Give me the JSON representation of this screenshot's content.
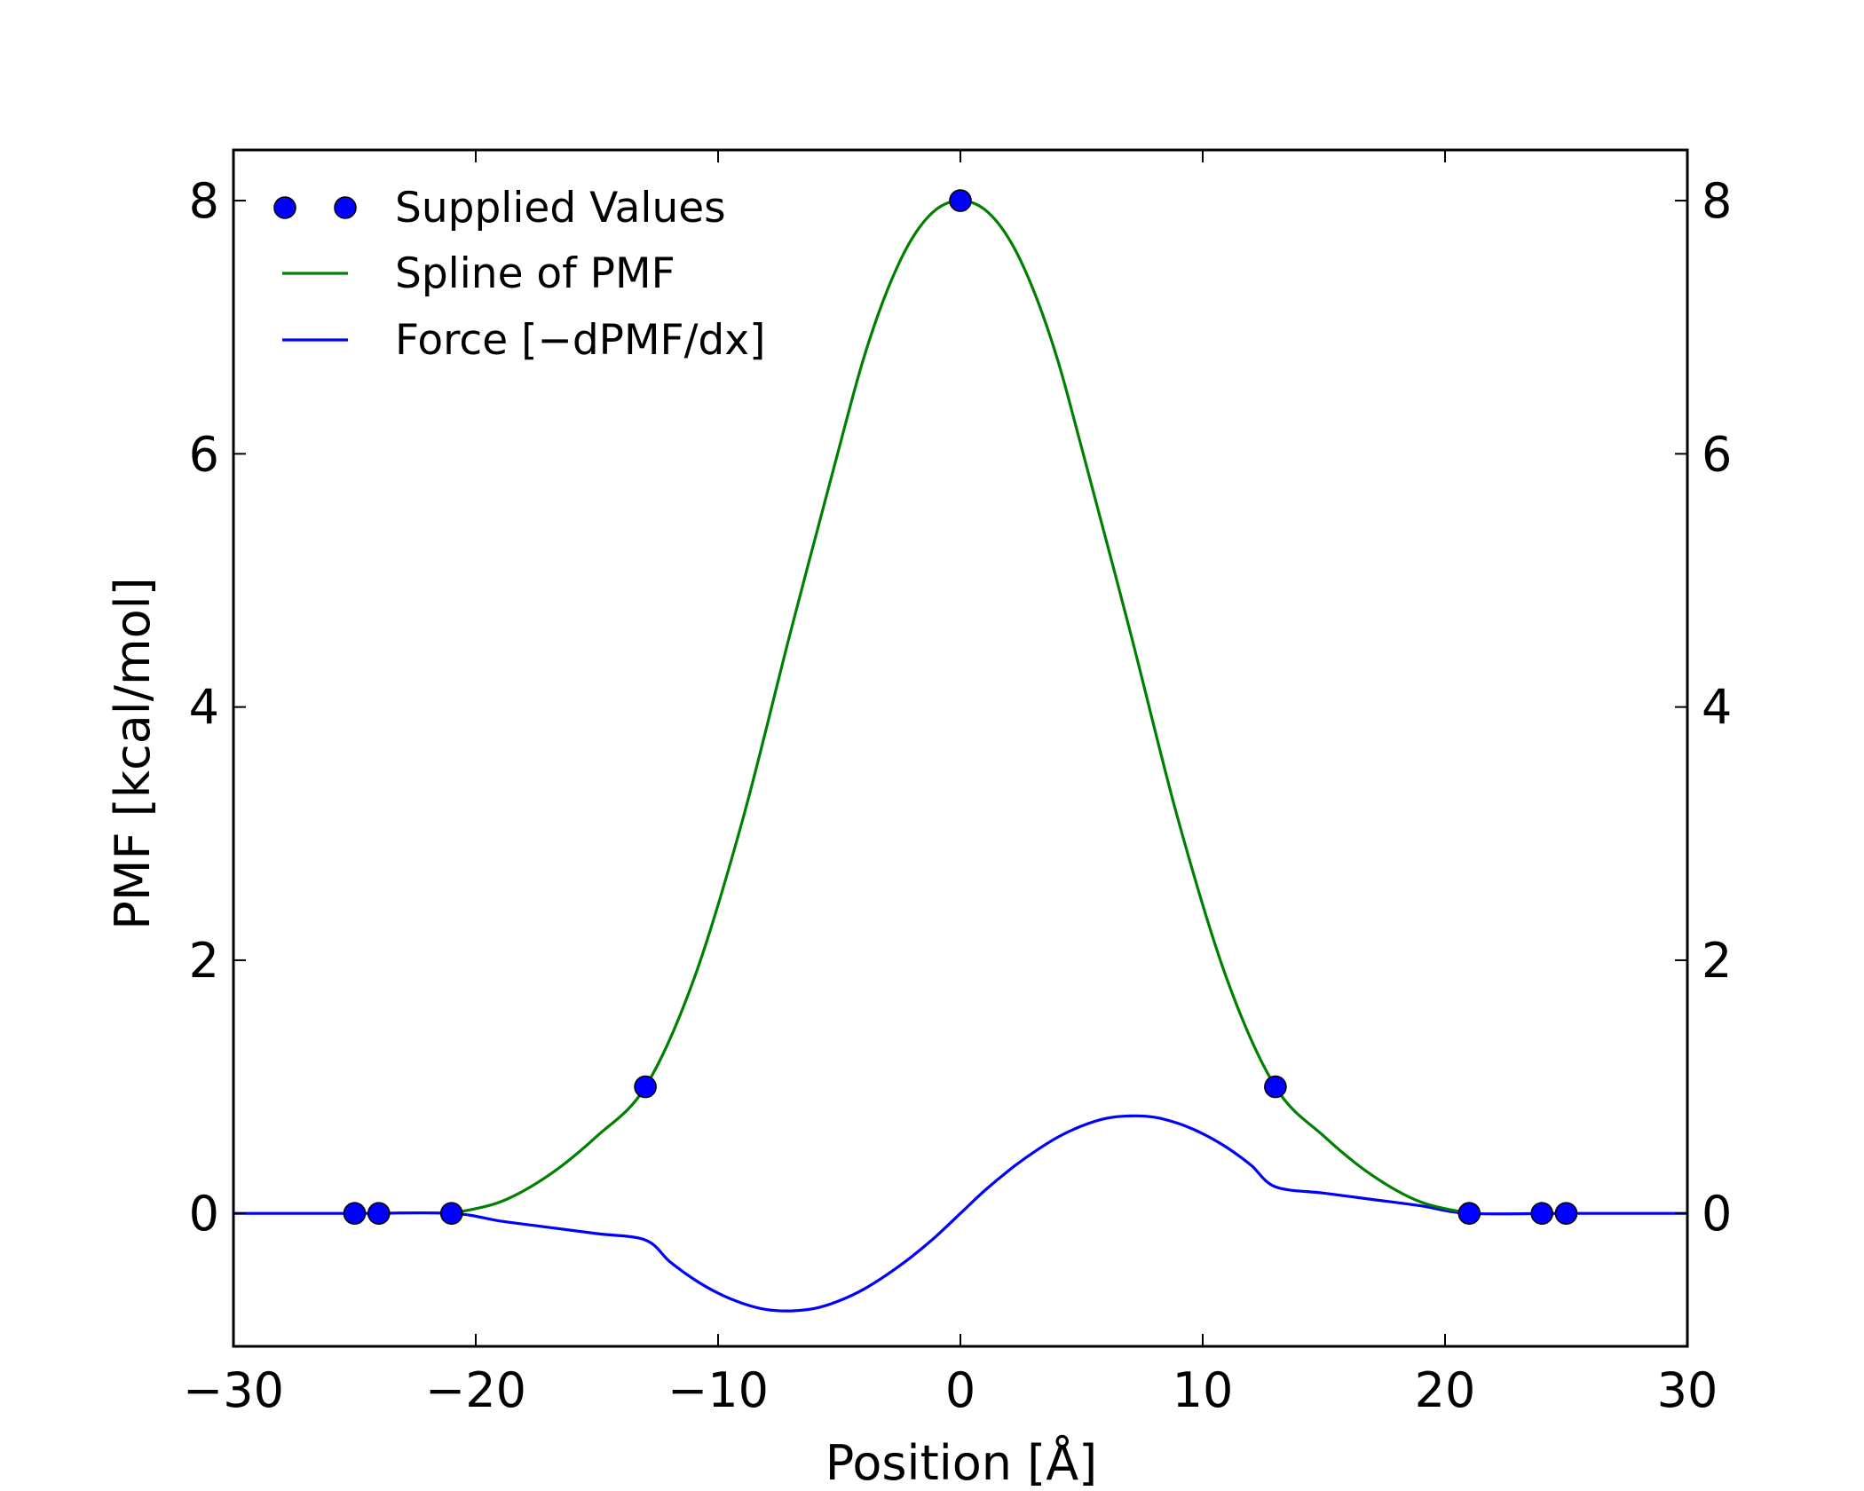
{
  "chart_data": {
    "type": "line",
    "xlabel": "Position [Å]",
    "ylabel": "PMF [kcal/mol]",
    "xlim": [
      -30,
      30
    ],
    "ylim": [
      -1.05,
      8.4
    ],
    "xticks": [
      -30,
      -20,
      -10,
      0,
      10,
      20,
      30
    ],
    "xtick_labels": [
      "−30",
      "−20",
      "−10",
      "0",
      "10",
      "20",
      "30"
    ],
    "yticks": [
      0,
      2,
      4,
      6,
      8
    ],
    "ytick_labels": [
      "0",
      "2",
      "4",
      "6",
      "8"
    ],
    "right_yticks": true,
    "grid": false,
    "legend_position": "top-left",
    "colors": {
      "pmf": "#008000",
      "force": "#0000ff",
      "points": "#0000ff"
    },
    "series": [
      {
        "name": "Supplied Values",
        "kind": "markers",
        "x": [
          -25,
          -24,
          -21,
          -13,
          0,
          13,
          21,
          24,
          25
        ],
        "y": [
          0,
          0,
          0,
          1,
          8,
          1,
          0,
          0,
          0
        ]
      },
      {
        "name": "Spline of PMF",
        "kind": "line",
        "x": [
          -21,
          -19,
          -17,
          -15,
          -13,
          -11,
          -9,
          -7,
          -5,
          -4,
          -3,
          -2,
          -1,
          0,
          1,
          2,
          3,
          4,
          5,
          7,
          9,
          11,
          13,
          15,
          17,
          19,
          21
        ],
        "y": [
          0,
          0.09,
          0.3,
          0.61,
          1.0,
          1.85,
          3.1,
          4.6,
          6.05,
          6.75,
          7.3,
          7.7,
          7.93,
          8.0,
          7.93,
          7.7,
          7.3,
          6.75,
          6.05,
          4.6,
          3.1,
          1.85,
          1.0,
          0.61,
          0.3,
          0.09,
          0
        ]
      },
      {
        "name": "Force [−dPMF/dx]",
        "kind": "line",
        "x": [
          -30,
          -25,
          -21,
          -19,
          -17,
          -15,
          -13,
          -12,
          -11,
          -10,
          -9,
          -8,
          -7,
          -6,
          -5,
          -4,
          -3,
          -2,
          -1,
          0,
          1,
          2,
          3,
          4,
          5,
          6,
          7,
          8,
          9,
          10,
          11,
          12,
          13,
          15,
          17,
          19,
          21,
          25,
          30
        ],
        "y": [
          0,
          0,
          0,
          -0.06,
          -0.11,
          -0.16,
          -0.21,
          -0.38,
          -0.52,
          -0.63,
          -0.71,
          -0.76,
          -0.77,
          -0.75,
          -0.69,
          -0.6,
          -0.48,
          -0.34,
          -0.18,
          0,
          0.18,
          0.34,
          0.48,
          0.6,
          0.69,
          0.75,
          0.77,
          0.76,
          0.71,
          0.63,
          0.52,
          0.38,
          0.21,
          0.16,
          0.11,
          0.06,
          0,
          0,
          0
        ]
      }
    ],
    "legend": [
      {
        "label": "Supplied Values",
        "marker": "circle"
      },
      {
        "label": "Spline of PMF",
        "marker": "line"
      },
      {
        "label": "Force [−dPMF/dx]",
        "marker": "line"
      }
    ]
  }
}
